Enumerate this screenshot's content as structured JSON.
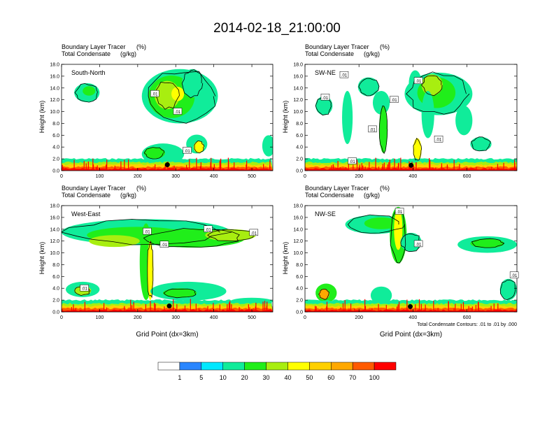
{
  "title": "2014-02-18_21:00:00",
  "colors": {
    "levels": [
      "#ffffff",
      "#2a86ff",
      "#00e8ff",
      "#10ec9a",
      "#20ee1a",
      "#a8ee10",
      "#ffff00",
      "#ffd000",
      "#ffa800",
      "#ff5a00",
      "#ff0000"
    ],
    "contour": "#000000",
    "marker": "#000000"
  },
  "colorbar": {
    "labels": [
      "1",
      "5",
      "10",
      "20",
      "30",
      "40",
      "50",
      "60",
      "70",
      "100"
    ]
  },
  "chart_data": [
    {
      "type": "heatmap",
      "panel_label": "South-North",
      "header_line1": "Boundary Layer Tracer",
      "header_unit1": "(%)",
      "header_line2": "Total Condensate",
      "header_unit2": "(g/kg)",
      "ylabel": "Height (km)",
      "xlabel": "",
      "xlim": [
        0,
        555
      ],
      "ylim": [
        0,
        18
      ],
      "xticks": [
        "0",
        "100",
        "200",
        "300",
        "400",
        "500"
      ],
      "xtick_values": [
        0,
        100,
        200,
        300,
        400,
        500
      ],
      "yticks": [
        "0.0",
        "2.0",
        "4.0",
        "6.0",
        "8.0",
        "10.0",
        "12.0",
        "14.0",
        "16.0",
        "18.0"
      ],
      "contour_labels": [
        {
          "text": ".01",
          "x": 245,
          "y": 13.0
        },
        {
          "text": ".01",
          "x": 305,
          "y": 10.0
        },
        {
          "text": ".01",
          "x": 330,
          "y": 3.4
        }
      ],
      "marker": {
        "x": 278,
        "y": 1.0
      },
      "note": ""
    },
    {
      "type": "heatmap",
      "panel_label": "SW-NE",
      "header_line1": "Boundary Layer Tracer",
      "header_unit1": "(%)",
      "header_line2": "Total Condensate",
      "header_unit2": "(g/kg)",
      "ylabel": "Height (km)",
      "xlabel": "",
      "xlim": [
        0,
        785
      ],
      "ylim": [
        0,
        18
      ],
      "xticks": [
        "0",
        "200",
        "400",
        "600"
      ],
      "xtick_values": [
        0,
        200,
        400,
        600
      ],
      "yticks": [
        "0.0",
        "2.0",
        "4.0",
        "6.0",
        "8.0",
        "10.0",
        "12.0",
        "14.0",
        "16.0",
        "18.0"
      ],
      "contour_labels": [
        {
          "text": ".01",
          "x": 145,
          "y": 16.2
        },
        {
          "text": ".01",
          "x": 75,
          "y": 12.4
        },
        {
          "text": ".01",
          "x": 330,
          "y": 12.0
        },
        {
          "text": ".01",
          "x": 420,
          "y": 15.2
        },
        {
          "text": ".01",
          "x": 250,
          "y": 7.0
        },
        {
          "text": ".01",
          "x": 495,
          "y": 5.3
        },
        {
          "text": ".01",
          "x": 175,
          "y": 1.6
        }
      ],
      "marker": {
        "x": 393,
        "y": 0.9
      },
      "note": ""
    },
    {
      "type": "heatmap",
      "panel_label": "West-East",
      "header_line1": "Boundary Layer Tracer",
      "header_unit1": "(%)",
      "header_line2": "Total Condensate",
      "header_unit2": "(g/kg)",
      "ylabel": "Height (km)",
      "xlabel": "Grid Point (dx=3km)",
      "xlim": [
        0,
        555
      ],
      "ylim": [
        0,
        18
      ],
      "xticks": [
        "0",
        "100",
        "200",
        "300",
        "400",
        "500"
      ],
      "xtick_values": [
        0,
        100,
        200,
        300,
        400,
        500
      ],
      "yticks": [
        "0.0",
        "2.0",
        "4.0",
        "6.0",
        "8.0",
        "10.0",
        "12.0",
        "14.0",
        "16.0",
        "18.0"
      ],
      "contour_labels": [
        {
          "text": ".01",
          "x": 225,
          "y": 13.6
        },
        {
          "text": ".01",
          "x": 270,
          "y": 11.4
        },
        {
          "text": ".01",
          "x": 385,
          "y": 14.0
        },
        {
          "text": ".01",
          "x": 505,
          "y": 13.4
        },
        {
          "text": ".01",
          "x": 60,
          "y": 4.0
        }
      ],
      "marker": {
        "x": 283,
        "y": 1.0
      },
      "note": ""
    },
    {
      "type": "heatmap",
      "panel_label": "NW-SE",
      "header_line1": "Boundary Layer Tracer",
      "header_unit1": "(%)",
      "header_line2": "Total Condensate",
      "header_unit2": "(g/kg)",
      "ylabel": "Height (km)",
      "xlabel": "Grid Point (dx=3km)",
      "xlim": [
        0,
        785
      ],
      "ylim": [
        0,
        18
      ],
      "xticks": [
        "0",
        "200",
        "400",
        "600"
      ],
      "xtick_values": [
        0,
        200,
        400,
        600
      ],
      "yticks": [
        "0.0",
        "2.0",
        "4.0",
        "6.0",
        "8.0",
        "10.0",
        "12.0",
        "14.0",
        "16.0",
        "18.0"
      ],
      "contour_labels": [
        {
          "text": ".01",
          "x": 350,
          "y": 17.0
        },
        {
          "text": ".01",
          "x": 420,
          "y": 11.5
        },
        {
          "text": ".01",
          "x": 775,
          "y": 6.2
        }
      ],
      "marker": {
        "x": 390,
        "y": 0.9
      },
      "note": "Total Condensate Contours: .01 to .01 by .000"
    }
  ]
}
